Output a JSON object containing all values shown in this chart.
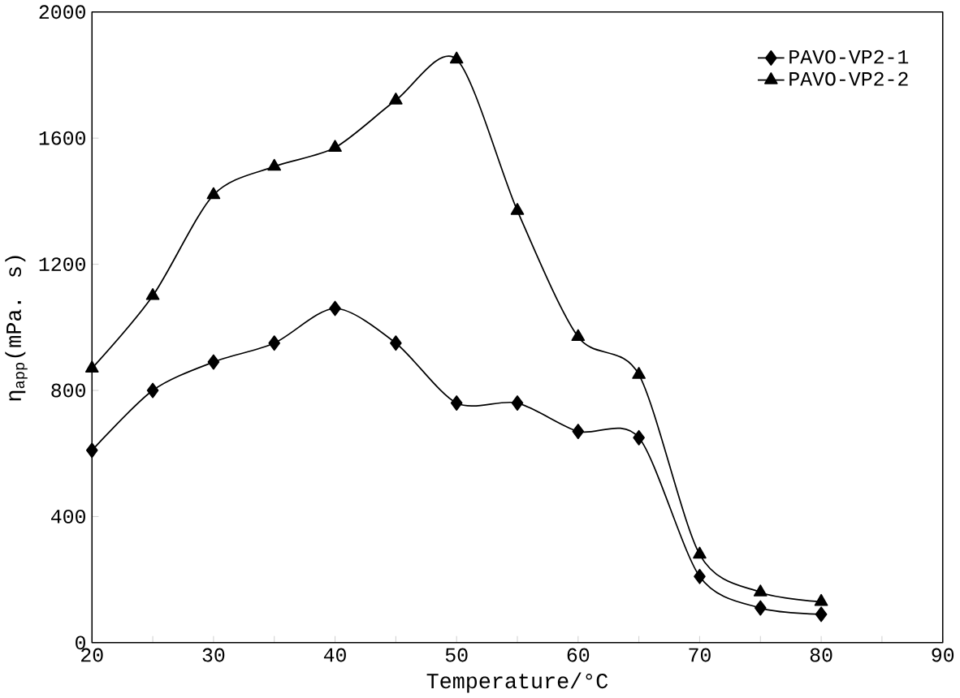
{
  "chart_data": {
    "type": "line",
    "xlabel": "Temperature/°C",
    "ylabel": "η$_{app}$(mPa. s)",
    "x": [
      20,
      25,
      30,
      35,
      40,
      45,
      50,
      55,
      60,
      65,
      70,
      75,
      80
    ],
    "series": [
      {
        "name": "PAVO-VP2-1",
        "color": "#000000",
        "marker": "diamond",
        "values": [
          610,
          800,
          890,
          950,
          1060,
          950,
          760,
          760,
          670,
          650,
          210,
          110,
          90
        ]
      },
      {
        "name": "PAVO-VP2-2",
        "color": "#000000",
        "marker": "triangle",
        "values": [
          870,
          1100,
          1420,
          1510,
          1570,
          1720,
          1850,
          1370,
          970,
          850,
          280,
          160,
          130
        ]
      }
    ],
    "xlim": [
      20,
      90
    ],
    "ylim": [
      0,
      2000
    ],
    "xticks": [
      20,
      {
        "value": 25,
        "label": null
      },
      30,
      {
        "value": 35,
        "label": null
      },
      40,
      {
        "value": 45,
        "label": null
      },
      50,
      {
        "value": 55,
        "label": null
      },
      60,
      {
        "value": 65,
        "label": null
      },
      70,
      {
        "value": 75,
        "label": null
      },
      80,
      {
        "value": 85,
        "label": null
      },
      90
    ],
    "yticks": [
      0,
      400,
      800,
      1200,
      1600,
      2000
    ],
    "grid": false,
    "legend": "top right",
    "line_style": "solid"
  }
}
